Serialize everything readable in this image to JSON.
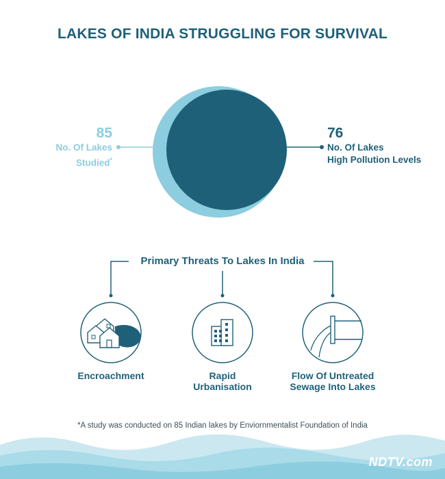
{
  "title": "LAKES OF INDIA STRUGGLING FOR SURVIVAL",
  "studied": {
    "value": "85",
    "label_1": "No. Of Lakes",
    "label_2": "Studied",
    "marker": "*"
  },
  "polluted": {
    "value": "76",
    "label_1": "No. Of Lakes",
    "label_2": "High Pollution Levels"
  },
  "ratio": {
    "polluted_of_studied": 0.894
  },
  "threats": {
    "heading": "Primary Threats To Lakes In India",
    "items": [
      {
        "label_1": "Encroachment",
        "label_2": "",
        "icon": "houses-icon"
      },
      {
        "label_1": "Rapid",
        "label_2": "Urbanisation",
        "icon": "building-icon"
      },
      {
        "label_1": "Flow Of Untreated",
        "label_2": "Sewage Into Lakes",
        "icon": "sewage-pipe-icon"
      }
    ]
  },
  "footnote": "*A study was conducted on 85 Indian lakes by Enviornmentalist Foundation of India",
  "logo": "NDTV.com",
  "colors": {
    "dark_teal": "#1f6079",
    "light_blue": "#8dcde0",
    "wave_light": "#cbe8f1"
  }
}
